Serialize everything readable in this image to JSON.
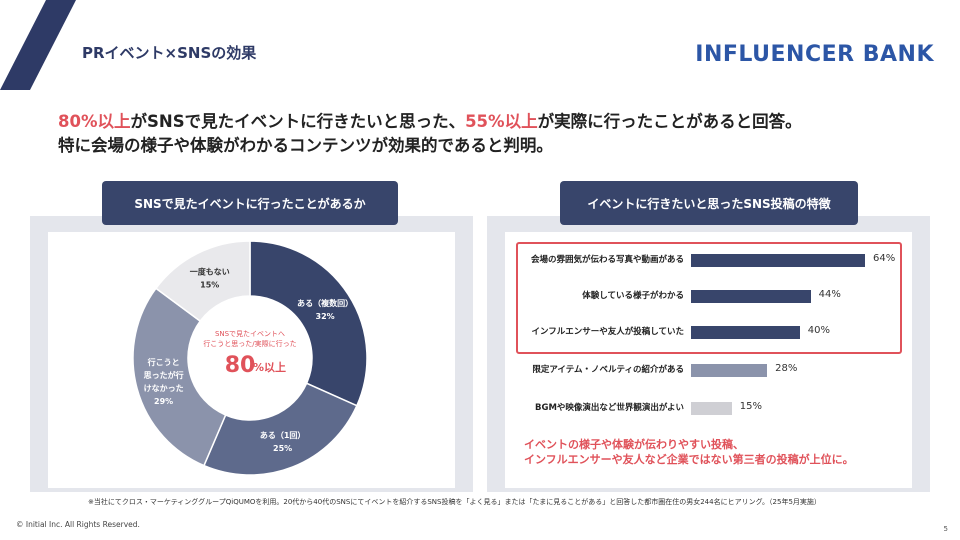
{
  "header": {
    "title": "PRイベント×SNSの効果",
    "brand": "INFLUENCER BANK"
  },
  "headline": {
    "line1_pct1": "80%以上",
    "line1_mid": "がSNSで見たイベントに行きたいと思った、",
    "line1_pct2": "55%以上",
    "line1_end": "が実際に行ったことがあると回答。",
    "line2": "特に会場の様子や体験がわかるコンテンツが効果的であると判明。"
  },
  "left_tab": "SNSで見たイベントに行ったことがあるか",
  "right_tab": "イベントに行きたいと思ったSNS投稿の特徴",
  "donut_center": {
    "caption1": "SNSで見たイベントへ",
    "caption2": "行こうと思った/実際に行った",
    "big": "80",
    "suffix": "%以上"
  },
  "chart_data": [
    {
      "type": "pie",
      "title": "SNSで見たイベントに行ったことがあるか",
      "slices": [
        {
          "label": "ある（複数回）",
          "value": 32,
          "pct_label": "32%",
          "color": "#38456b"
        },
        {
          "label": "ある（1回）",
          "value": 25,
          "pct_label": "25%",
          "color": "#5e6a8c"
        },
        {
          "label_lines": [
            "行こうと",
            "思ったが行",
            "けなかった"
          ],
          "value": 29,
          "pct_label": "29%",
          "color": "#8b93ab"
        },
        {
          "label": "一度もない",
          "value": 15,
          "pct_label": "15%",
          "color": "#e9e9ec"
        }
      ]
    },
    {
      "type": "bar",
      "orientation": "horizontal",
      "title": "イベントに行きたいと思ったSNS投稿の特徴",
      "categories": [
        "会場の雰囲気が伝わる写真や動画がある",
        "体験している様子がわかる",
        "インフルエンサーや友人が投稿していた",
        "限定アイテム・ノベルティの紹介がある",
        "BGMや映像演出など世界観演出がよい"
      ],
      "values": [
        64,
        44,
        40,
        28,
        15
      ],
      "value_labels": [
        "64%",
        "44%",
        "40%",
        "28%",
        "15%"
      ],
      "colors": [
        "#38456b",
        "#38456b",
        "#38456b",
        "#8b93ab",
        "#cfcfd4"
      ],
      "xlim": [
        0,
        64
      ]
    }
  ],
  "note": {
    "line1": "イベントの様子や体験が伝わりやすい投稿、",
    "line2": "インフルエンサーや友人など企業ではない第三者の投稿が上位に。"
  },
  "footnote": "※当社にてクロス・マーケティンググループQiQUMOを利用。20代から40代のSNSにてイベントを紹介するSNS投稿を「よく見る」または「たまに見ることがある」と回答した都市圏在住の男女244名にヒアリング。（25年5月実施）",
  "copyright": "© Initial Inc. All Rights Reserved.",
  "page_number": "5"
}
